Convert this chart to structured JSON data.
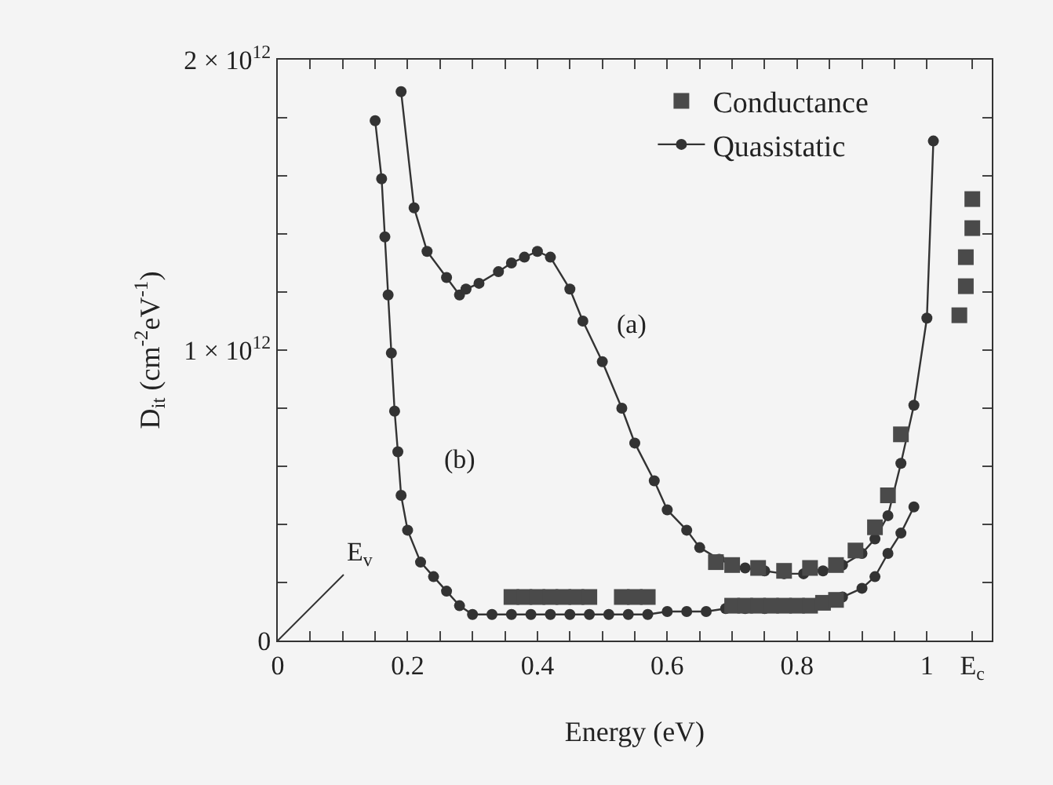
{
  "chart_data": {
    "type": "line",
    "xlabel": "Energy (eV)",
    "ylabel": "D$_{it}$ (cm$^{-2}$eV$^{-1}$)",
    "xlim": [
      0,
      1.1
    ],
    "xticks": [
      0,
      {
        "value": 0.05,
        "label": null
      },
      {
        "value": 0.1,
        "label": null
      },
      {
        "value": 0.15,
        "label": null
      },
      0.2,
      {
        "value": 0.25,
        "label": null
      },
      {
        "value": 0.3,
        "label": null
      },
      {
        "value": 0.35,
        "label": null
      },
      0.4,
      {
        "value": 0.45,
        "label": null
      },
      {
        "value": 0.5,
        "label": null
      },
      {
        "value": 0.55,
        "label": null
      },
      0.6,
      {
        "value": 0.65,
        "label": null
      },
      {
        "value": 0.7,
        "label": null
      },
      {
        "value": 0.75,
        "label": null
      },
      0.8,
      {
        "value": 0.85,
        "label": null
      },
      {
        "value": 0.9,
        "label": null
      },
      {
        "value": 0.95,
        "label": null
      },
      1,
      {
        "value": 1.07,
        "label": "E$_{c}$"
      }
    ],
    "ylim": [
      0,
      2000000000000.0
    ],
    "yticks": [
      0,
      {
        "value": 200000000000.0,
        "label": null
      },
      {
        "value": 400000000000.0,
        "label": null
      },
      {
        "value": 600000000000.0,
        "label": null
      },
      {
        "value": 800000000000.0,
        "label": null
      },
      {
        "value": 1000000000000.0,
        "label": "1 × 10$^{12}$"
      },
      {
        "value": 1200000000000.0,
        "label": null
      },
      {
        "value": 1400000000000.0,
        "label": null
      },
      {
        "value": 1600000000000.0,
        "label": null
      },
      {
        "value": 1800000000000.0,
        "label": null
      },
      {
        "value": 2000000000000.0,
        "label": "2 × 10$^{12}$"
      }
    ],
    "grid": false,
    "legend": "top right",
    "series": [
      {
        "name": "Conductance",
        "type": "scatter",
        "marker": "square",
        "color": "#4a4a4a",
        "x": [
          0.36,
          0.38,
          0.4,
          0.42,
          0.44,
          0.46,
          0.48,
          0.53,
          0.55,
          0.57,
          0.675,
          0.7,
          0.74,
          0.78,
          0.82,
          0.86,
          0.89,
          0.92,
          0.94,
          0.96,
          0.7,
          0.72,
          0.74,
          0.76,
          0.78,
          0.8,
          0.82,
          0.84,
          0.86,
          1.05,
          1.06,
          1.06,
          1.07,
          1.07
        ],
        "values": [
          150000000000.0,
          150000000000.0,
          150000000000.0,
          150000000000.0,
          150000000000.0,
          150000000000.0,
          150000000000.0,
          150000000000.0,
          150000000000.0,
          150000000000.0,
          270000000000.0,
          260000000000.0,
          250000000000.0,
          240000000000.0,
          250000000000.0,
          260000000000.0,
          310000000000.0,
          390000000000.0,
          500000000000.0,
          710000000000.0,
          120000000000.0,
          120000000000.0,
          120000000000.0,
          120000000000.0,
          120000000000.0,
          120000000000.0,
          120000000000.0,
          130000000000.0,
          140000000000.0,
          1120000000000.0,
          1220000000000.0,
          1320000000000.0,
          1420000000000.0,
          1520000000000.0
        ]
      },
      {
        "name": "Quasistatic",
        "type": "line",
        "marker": "circle",
        "line_style": "solid",
        "color": "#333333",
        "x": [
          0.19,
          0.21,
          0.23,
          0.26,
          0.28,
          0.29,
          0.31,
          0.34,
          0.36,
          0.38,
          0.4,
          0.42,
          0.45,
          0.47,
          0.5,
          0.53,
          0.55,
          0.58,
          0.6,
          0.63,
          0.65,
          0.68,
          0.7,
          0.72,
          0.75,
          0.78,
          0.81,
          0.84,
          0.87,
          0.9,
          0.92,
          0.94,
          0.96,
          0.98,
          1.0,
          1.01,
          null,
          0.15,
          0.16,
          0.165,
          0.17,
          0.175,
          0.18,
          0.185,
          0.19,
          0.2,
          0.22,
          0.24,
          0.26,
          0.28,
          0.3,
          0.33,
          0.36,
          0.39,
          0.42,
          0.45,
          0.48,
          0.51,
          0.54,
          0.57,
          0.6,
          0.63,
          0.66,
          0.69,
          0.72,
          0.75,
          0.78,
          0.81,
          0.84,
          0.87,
          0.9,
          0.92,
          0.94,
          0.96,
          0.98
        ],
        "values": [
          1890000000000.0,
          1490000000000.0,
          1340000000000.0,
          1250000000000.0,
          1190000000000.0,
          1210000000000.0,
          1230000000000.0,
          1270000000000.0,
          1300000000000.0,
          1320000000000.0,
          1340000000000.0,
          1320000000000.0,
          1210000000000.0,
          1100000000000.0,
          960000000000.0,
          800000000000.0,
          680000000000.0,
          550000000000.0,
          450000000000.0,
          380000000000.0,
          320000000000.0,
          280000000000.0,
          260000000000.0,
          250000000000.0,
          240000000000.0,
          230000000000.0,
          230000000000.0,
          240000000000.0,
          260000000000.0,
          300000000000.0,
          350000000000.0,
          430000000000.0,
          610000000000.0,
          810000000000.0,
          1110000000000.0,
          1720000000000.0,
          null,
          1790000000000.0,
          1590000000000.0,
          1390000000000.0,
          1190000000000.0,
          990000000000.0,
          790000000000.0,
          650000000000.0,
          500000000000.0,
          380000000000.0,
          270000000000.0,
          220000000000.0,
          170000000000.0,
          120000000000.0,
          90000000000.0,
          90000000000.0,
          90000000000.0,
          90000000000.0,
          90000000000.0,
          90000000000.0,
          90000000000.0,
          90000000000.0,
          90000000000.0,
          90000000000.0,
          100000000000.0,
          100000000000.0,
          100000000000.0,
          110000000000.0,
          110000000000.0,
          110000000000.0,
          120000000000.0,
          120000000000.0,
          130000000000.0,
          150000000000.0,
          180000000000.0,
          220000000000.0,
          300000000000.0,
          370000000000.0,
          460000000000.0
        ]
      }
    ],
    "annotations": [
      "(a)",
      "(b)",
      "E$_{v}$"
    ]
  }
}
